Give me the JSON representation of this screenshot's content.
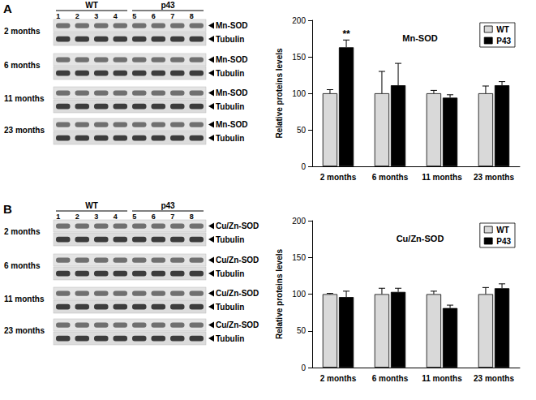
{
  "figure": {
    "panels": [
      {
        "label": "A",
        "blot": {
          "groups": [
            {
              "name": "WT",
              "lanes": [
                "1",
                "2",
                "3",
                "4"
              ]
            },
            {
              "name": "p43",
              "lanes": [
                "5",
                "6",
                "7",
                "8"
              ]
            }
          ],
          "rows": [
            {
              "label": "2 months",
              "bands": [
                "Mn-SOD",
                "Tubulin"
              ]
            },
            {
              "label": "6 months",
              "bands": [
                "Mn-SOD",
                "Tubulin"
              ]
            },
            {
              "label": "11 months",
              "bands": [
                "Mn-SOD",
                "Tubulin"
              ]
            },
            {
              "label": "23 months",
              "bands": [
                "Mn-SOD",
                "Tubulin"
              ]
            }
          ]
        }
      },
      {
        "label": "B",
        "blot": {
          "groups": [
            {
              "name": "WT",
              "lanes": [
                "1",
                "2",
                "3",
                "4"
              ]
            },
            {
              "name": "p43",
              "lanes": [
                "5",
                "6",
                "7",
                "8"
              ]
            }
          ],
          "rows": [
            {
              "label": "2 months",
              "bands": [
                "Cu/Zn-SOD",
                "Tubulin"
              ]
            },
            {
              "label": "6 months",
              "bands": [
                "Cu/Zn-SOD",
                "Tubulin"
              ]
            },
            {
              "label": "11 months",
              "bands": [
                "Cu/Zn-SOD",
                "Tubulin"
              ]
            },
            {
              "label": "23 months",
              "bands": [
                "Cu/Zn-SOD",
                "Tubulin"
              ]
            }
          ]
        }
      }
    ]
  },
  "chart_data": [
    {
      "type": "bar",
      "title": "Mn-SOD",
      "ylabel": "Relative proteins levels",
      "categories": [
        "2 months",
        "6 months",
        "11 months",
        "23 months"
      ],
      "series": [
        {
          "name": "WT",
          "color": "#d9d9d9",
          "values": [
            100,
            100,
            100,
            100
          ],
          "errors": [
            5,
            30,
            4,
            10
          ]
        },
        {
          "name": "P43",
          "color": "#000000",
          "values": [
            163,
            111,
            94,
            111
          ],
          "errors": [
            10,
            30,
            4,
            5
          ]
        }
      ],
      "annotations": [
        {
          "text": "**",
          "category": "2 months",
          "series": "P43"
        }
      ],
      "ylim": [
        0,
        200
      ],
      "yticks": [
        0,
        50,
        100,
        150,
        200
      ],
      "grid": false,
      "legend": "top-right"
    },
    {
      "type": "bar",
      "title": "Cu/Zn-SOD",
      "ylabel": "Relative proteins levels",
      "categories": [
        "2 months",
        "6 months",
        "11 months",
        "23 months"
      ],
      "series": [
        {
          "name": "WT",
          "color": "#d9d9d9",
          "values": [
            100,
            100,
            100,
            100
          ],
          "errors": [
            1,
            8,
            4,
            9
          ]
        },
        {
          "name": "P43",
          "color": "#000000",
          "values": [
            96,
            103,
            81,
            108
          ],
          "errors": [
            8,
            5,
            4,
            6
          ]
        }
      ],
      "ylim": [
        0,
        200
      ],
      "yticks": [
        0,
        50,
        100,
        150,
        200
      ],
      "grid": false,
      "legend": "top-right"
    }
  ]
}
